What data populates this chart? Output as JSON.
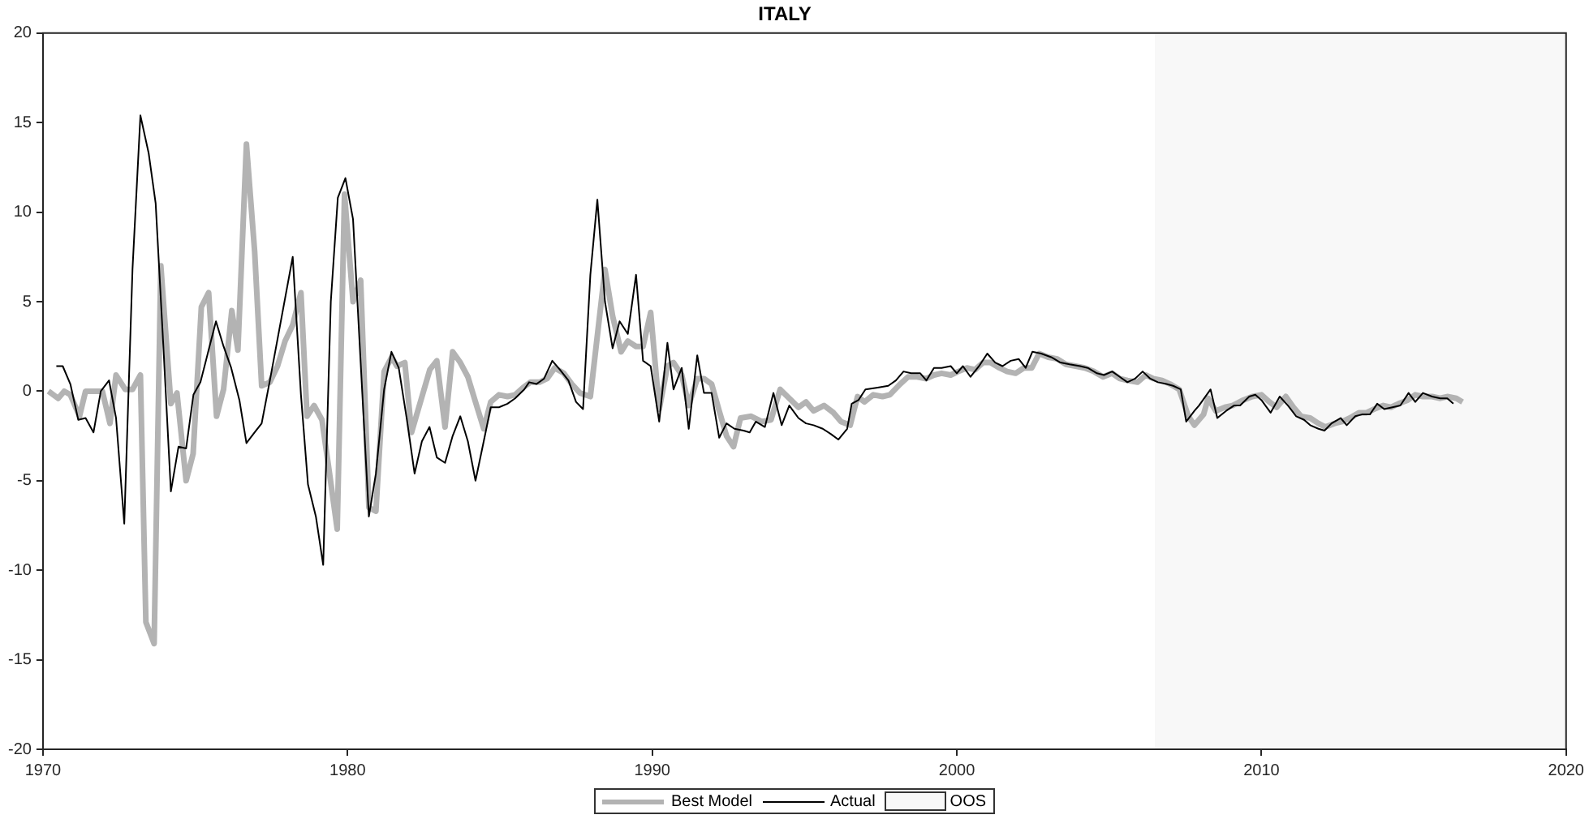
{
  "chart_data": {
    "type": "line",
    "title": "ITALY",
    "xlim": [
      1970,
      2020
    ],
    "xticks": [
      1970,
      1980,
      1990,
      2000,
      2010,
      2020
    ],
    "ylim": [
      -20,
      20
    ],
    "yticks": [
      -20,
      -15,
      -10,
      -5,
      0,
      5,
      10,
      15,
      20
    ],
    "grid": false,
    "legend": "bottom",
    "marker": "none",
    "line_style": "solid",
    "bands": [
      {
        "axis": "x",
        "from": 2006.5,
        "to": 2020,
        "label": "OOS",
        "color": "#f8f8f8"
      }
    ],
    "series": [
      {
        "name": "Best Model",
        "color": "#b3b3b3",
        "x": [
          1970.18,
          1970.5,
          1970.7,
          1970.9,
          1971.2,
          1971.4,
          1971.7,
          1971.95,
          1972.2,
          1972.4,
          1972.7,
          1972.94,
          1973.2,
          1973.38,
          1973.65,
          1973.87,
          1974.2,
          1974.4,
          1974.7,
          1974.93,
          1975.2,
          1975.44,
          1975.7,
          1975.93,
          1976.2,
          1976.4,
          1976.68,
          1976.95,
          1977.18,
          1977.45,
          1977.7,
          1977.95,
          1978.2,
          1978.47,
          1978.67,
          1978.9,
          1979.16,
          1979.4,
          1979.66,
          1979.9,
          1980.18,
          1980.43,
          1980.7,
          1980.93,
          1981.2,
          1981.45,
          1981.62,
          1981.88,
          1982.1,
          1982.7,
          1982.93,
          1983.2,
          1983.45,
          1983.7,
          1983.95,
          1984.2,
          1984.47,
          1984.7,
          1984.97,
          1985.25,
          1985.5,
          1985.76,
          1986.0,
          1986.3,
          1986.55,
          1986.8,
          1987.1,
          1987.36,
          1987.63,
          1987.97,
          1988.45,
          1988.7,
          1988.98,
          1989.2,
          1989.47,
          1989.7,
          1989.95,
          1990.23,
          1990.5,
          1990.7,
          1990.97,
          1991.2,
          1991.48,
          1991.7,
          1991.95,
          1992.2,
          1992.44,
          1992.67,
          1992.9,
          1993.25,
          1993.6,
          1993.9,
          1994.2,
          1994.5,
          1994.8,
          1995.05,
          1995.3,
          1995.64,
          1995.95,
          1996.2,
          1996.5,
          1996.74,
          1996.97,
          1997.26,
          1997.56,
          1997.8,
          1998.14,
          1998.4,
          1998.7,
          1999.0,
          1999.25,
          1999.5,
          1999.8,
          2000.05,
          2000.33,
          2000.6,
          2000.86,
          2001.1,
          2001.4,
          2001.65,
          2001.93,
          2002.2,
          2002.46,
          2002.7,
          2003.0,
          2003.3,
          2003.58,
          2003.9,
          2004.2,
          2004.5,
          2004.8,
          2005.1,
          2005.35,
          2005.6,
          2005.93,
          2006.2,
          2006.45,
          2006.74,
          2007.0,
          2007.3,
          2007.6,
          2007.8,
          2008.1,
          2008.25,
          2008.5,
          2008.8,
          2009.05,
          2009.4,
          2009.7,
          2010.0,
          2010.26,
          2010.5,
          2010.8,
          2011.05,
          2011.3,
          2011.6,
          2011.87,
          2012.1,
          2012.4,
          2012.65,
          2012.9,
          2013.2,
          2013.45,
          2013.7,
          2014.0,
          2014.25,
          2014.5,
          2014.8,
          2015.05,
          2015.3,
          2015.6,
          2015.87,
          2016.1,
          2016.4,
          2016.6
        ],
        "values": [
          0,
          -0.4,
          0,
          -0.2,
          -1.4,
          0,
          0,
          0,
          -1.8,
          0.9,
          0.1,
          0.1,
          0.9,
          -12.9,
          -14.1,
          7.0,
          -0.7,
          -0.1,
          -5.0,
          -3.5,
          4.7,
          5.5,
          -1.4,
          0.1,
          4.5,
          2.3,
          13.8,
          7.8,
          0.3,
          0.5,
          1.4,
          2.8,
          3.7,
          5.5,
          -1.4,
          -0.8,
          -1.6,
          -4.5,
          -7.7,
          11.0,
          5.0,
          6.2,
          -6.5,
          -6.7,
          1.1,
          1.9,
          1.4,
          1.6,
          -2.3,
          1.2,
          1.7,
          -2.0,
          2.2,
          1.6,
          0.8,
          -0.6,
          -2.1,
          -0.6,
          -0.2,
          -0.3,
          -0.2,
          0.2,
          0.5,
          0.5,
          0.7,
          1.3,
          1.0,
          0.4,
          -0.1,
          -0.3,
          6.8,
          4.2,
          2.2,
          2.8,
          2.5,
          2.5,
          4.4,
          -1.0,
          1.4,
          1.6,
          0.9,
          -0.8,
          0.7,
          0.7,
          0.4,
          -1.1,
          -2.5,
          -3.1,
          -1.5,
          -1.4,
          -1.7,
          -1.6,
          0.1,
          -0.4,
          -0.9,
          -0.6,
          -1.1,
          -0.8,
          -1.2,
          -1.7,
          -1.9,
          -0.3,
          -0.6,
          -0.2,
          -0.3,
          -0.2,
          0.4,
          0.8,
          0.8,
          0.7,
          0.9,
          1.0,
          0.9,
          1.1,
          1.3,
          1.2,
          1.6,
          1.6,
          1.3,
          1.1,
          1.0,
          1.3,
          1.3,
          2.1,
          1.9,
          1.8,
          1.5,
          1.4,
          1.3,
          1.1,
          0.8,
          1.0,
          0.7,
          0.6,
          0.5,
          0.9,
          0.7,
          0.6,
          0.4,
          0.1,
          -1.4,
          -1.9,
          -1.3,
          -0.4,
          -1.1,
          -0.9,
          -0.8,
          -0.5,
          -0.3,
          -0.2,
          -0.6,
          -0.9,
          -0.3,
          -0.9,
          -1.4,
          -1.5,
          -1.8,
          -2.0,
          -1.8,
          -1.7,
          -1.5,
          -1.2,
          -1.2,
          -1.0,
          -0.8,
          -0.9,
          -0.7,
          -0.5,
          -0.2,
          -0.3,
          -0.3,
          -0.4,
          -0.3,
          -0.4,
          -0.6
        ]
      },
      {
        "name": "Actual",
        "color": "#000000",
        "x": [
          1970.44,
          1970.65,
          1970.9,
          1971.16,
          1971.4,
          1971.66,
          1971.9,
          1972.17,
          1972.4,
          1972.67,
          1972.94,
          1973.2,
          1973.47,
          1973.7,
          1973.96,
          1974.2,
          1974.45,
          1974.7,
          1974.94,
          1975.17,
          1975.44,
          1975.68,
          1975.93,
          1976.18,
          1976.45,
          1976.68,
          1976.95,
          1977.18,
          1977.45,
          1977.7,
          1977.95,
          1978.2,
          1978.47,
          1978.7,
          1978.96,
          1979.2,
          1979.45,
          1979.68,
          1979.93,
          1980.18,
          1980.43,
          1980.7,
          1980.93,
          1981.2,
          1981.44,
          1981.68,
          1981.94,
          1982.2,
          1982.44,
          1982.69,
          1982.93,
          1983.2,
          1983.45,
          1983.7,
          1983.95,
          1984.2,
          1984.47,
          1984.7,
          1984.97,
          1985.25,
          1985.5,
          1985.8,
          1985.96,
          1986.2,
          1986.45,
          1986.72,
          1986.97,
          1987.25,
          1987.5,
          1987.73,
          1987.97,
          1988.2,
          1988.45,
          1988.7,
          1988.93,
          1989.2,
          1989.47,
          1989.7,
          1989.95,
          1990.23,
          1990.5,
          1990.7,
          1990.97,
          1991.2,
          1991.48,
          1991.7,
          1991.95,
          1992.2,
          1992.44,
          1992.7,
          1993.0,
          1993.2,
          1993.4,
          1993.7,
          1993.98,
          1994.25,
          1994.5,
          1994.8,
          1995.05,
          1995.3,
          1995.6,
          1995.87,
          1996.11,
          1996.4,
          1996.55,
          1996.77,
          1997.0,
          1997.4,
          1997.75,
          1998.0,
          1998.25,
          1998.5,
          1998.8,
          1999.0,
          1999.25,
          1999.5,
          1999.8,
          2000.0,
          2000.2,
          2000.45,
          2000.73,
          2001.0,
          2001.26,
          2001.5,
          2001.77,
          2002.03,
          2002.26,
          2002.48,
          2002.77,
          2003.1,
          2003.4,
          2003.7,
          2004.05,
          2004.3,
          2004.6,
          2004.83,
          2005.1,
          2005.35,
          2005.6,
          2005.85,
          2006.1,
          2006.35,
          2006.6,
          2006.88,
          2007.1,
          2007.35,
          2007.53,
          2007.8,
          2007.95,
          2008.33,
          2008.55,
          2008.84,
          2009.1,
          2009.3,
          2009.6,
          2009.8,
          2010.0,
          2010.3,
          2010.6,
          2010.87,
          2011.14,
          2011.4,
          2011.6,
          2011.87,
          2012.07,
          2012.3,
          2012.6,
          2012.8,
          2013.08,
          2013.3,
          2013.56,
          2013.8,
          2014.03,
          2014.3,
          2014.56,
          2014.83,
          2015.05,
          2015.3,
          2015.6,
          2015.87,
          2016.1,
          2016.3
        ],
        "values": [
          1.4,
          1.4,
          0.4,
          -1.6,
          -1.5,
          -2.3,
          0,
          0.6,
          -1.5,
          -7.4,
          6.8,
          15.4,
          13.3,
          10.5,
          2.3,
          -5.6,
          -3.1,
          -3.2,
          -0.2,
          0.5,
          2.3,
          3.9,
          2.5,
          1.3,
          -0.5,
          -2.9,
          -2.3,
          -1.8,
          0.6,
          2.9,
          5.2,
          7.5,
          -0.2,
          -5.2,
          -7.0,
          -9.7,
          5.0,
          10.8,
          11.9,
          9.6,
          1.6,
          -7.0,
          -4.6,
          0.1,
          2.2,
          1.3,
          -1.5,
          -4.6,
          -2.8,
          -2.0,
          -3.7,
          -4.0,
          -2.5,
          -1.4,
          -2.8,
          -5.0,
          -2.8,
          -0.9,
          -0.9,
          -0.7,
          -0.4,
          0.1,
          0.5,
          0.4,
          0.7,
          1.7,
          1.2,
          0.6,
          -0.6,
          -1.0,
          6.5,
          10.7,
          5.0,
          2.4,
          3.9,
          3.2,
          6.5,
          1.7,
          1.4,
          -1.7,
          2.7,
          0.1,
          1.3,
          -2.1,
          2.0,
          -0.1,
          -0.1,
          -2.6,
          -1.8,
          -2.1,
          -2.2,
          -2.3,
          -1.7,
          -2.0,
          -0.1,
          -1.9,
          -0.8,
          -1.5,
          -1.8,
          -1.9,
          -2.1,
          -2.4,
          -2.7,
          -2.1,
          -0.7,
          -0.5,
          0.1,
          0.2,
          0.3,
          0.6,
          1.1,
          1.0,
          1.0,
          0.6,
          1.3,
          1.3,
          1.4,
          1.0,
          1.4,
          0.8,
          1.4,
          2.1,
          1.6,
          1.4,
          1.7,
          1.8,
          1.3,
          2.2,
          2.1,
          1.9,
          1.6,
          1.5,
          1.4,
          1.3,
          1.0,
          0.9,
          1.1,
          0.8,
          0.5,
          0.7,
          1.1,
          0.7,
          0.5,
          0.4,
          0.3,
          0.1,
          -1.7,
          -1.1,
          -0.8,
          0.1,
          -1.5,
          -1.1,
          -0.8,
          -0.8,
          -0.3,
          -0.2,
          -0.5,
          -1.2,
          -0.3,
          -0.8,
          -1.4,
          -1.6,
          -1.9,
          -2.1,
          -2.2,
          -1.8,
          -1.5,
          -1.9,
          -1.4,
          -1.3,
          -1.3,
          -0.7,
          -1.0,
          -0.9,
          -0.8,
          -0.1,
          -0.6,
          -0.1,
          -0.3,
          -0.4,
          -0.4,
          -0.7
        ]
      }
    ]
  }
}
